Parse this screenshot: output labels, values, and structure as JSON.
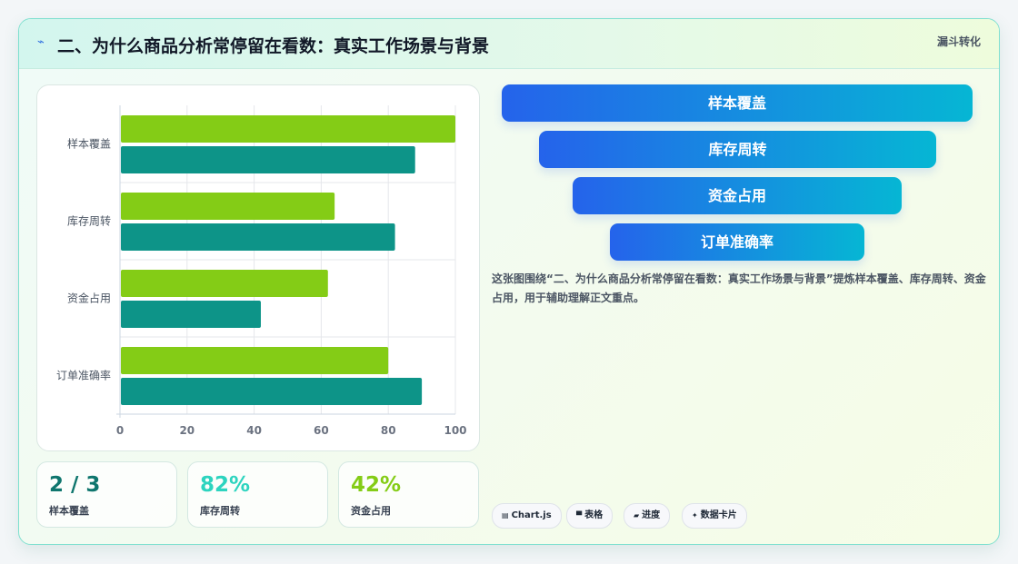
{
  "header": {
    "icon": "bolt-icon",
    "title": "二、为什么商品分析常停留在看数：真实工作场景与背景",
    "tag": "漏斗转化"
  },
  "chart_data": {
    "type": "bar",
    "orientation": "horizontal",
    "categories": [
      "样本覆盖",
      "库存周转",
      "资金占用",
      "订单准确率"
    ],
    "series": [
      {
        "color": "#84cc16",
        "values": [
          100,
          64,
          62,
          80
        ]
      },
      {
        "color": "#0d9488",
        "values": [
          88,
          82,
          42,
          90
        ]
      }
    ],
    "xlim": [
      0,
      100
    ],
    "xticks": [
      "0",
      "20",
      "40",
      "60",
      "80",
      "100"
    ],
    "grid": true,
    "legend": "none"
  },
  "stats": [
    {
      "value": "2 / 3",
      "label": "样本覆盖",
      "color": "#0f766e"
    },
    {
      "value": "82%",
      "label": "库存周转",
      "color": "#2dd4bf"
    },
    {
      "value": "42%",
      "label": "资金占用",
      "color": "#84cc16"
    }
  ],
  "funnel": {
    "stages": [
      "样本覆盖",
      "库存周转",
      "资金占用",
      "订单准确率"
    ],
    "gradient": [
      "#2563eb",
      "#06b6d4"
    ]
  },
  "description": "这张图围绕“二、为什么商品分析常停留在看数：真实工作场景与背景”提炼样本覆盖、库存周转、资金占用，用于辅助理解正文重点。",
  "chips": [
    {
      "icon": "chart-icon",
      "label": "Chart.js"
    },
    {
      "icon": "table-icon",
      "label": "表格"
    },
    {
      "icon": "progress-icon",
      "label": "进度"
    },
    {
      "icon": "sparkle-icon",
      "label": "数据卡片"
    }
  ]
}
